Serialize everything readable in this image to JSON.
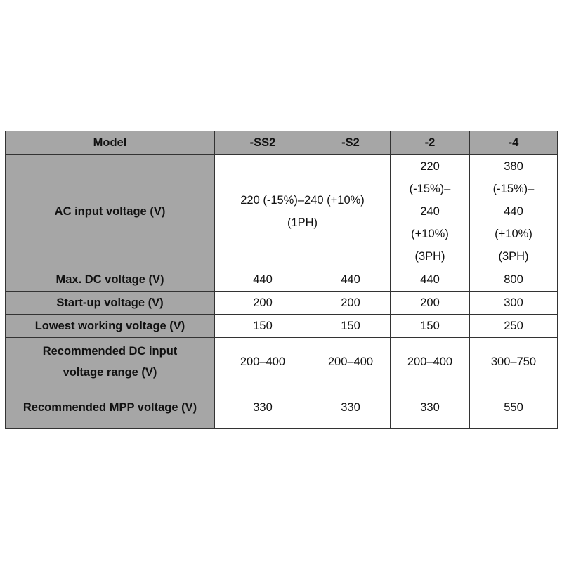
{
  "table": {
    "headers": [
      "Model",
      "-SS2",
      "-S2",
      "-2",
      "-4"
    ],
    "ac_input": {
      "label": "AC input voltage (V)",
      "single_phase": "220 (-15%)–240 (+10%) (1PH)",
      "model_2": [
        "220",
        "(-15%)–",
        "240",
        "(+10%)",
        "(3PH)"
      ],
      "model_4": [
        "380",
        "(-15%)–",
        "440",
        "(+10%)",
        "(3PH)"
      ]
    },
    "rows": [
      {
        "label": "Max. DC voltage (V)",
        "values": [
          "440",
          "440",
          "440",
          "800"
        ]
      },
      {
        "label": "Start-up voltage (V)",
        "values": [
          "200",
          "200",
          "200",
          "300"
        ]
      },
      {
        "label": "Lowest working voltage (V)",
        "values": [
          "150",
          "150",
          "150",
          "250"
        ]
      },
      {
        "label": "Recommended DC input voltage range (V)",
        "values": [
          "200–400",
          "200–400",
          "200–400",
          "300–750"
        ]
      },
      {
        "label": "Recommended MPP voltage (V)",
        "values": [
          "330",
          "330",
          "330",
          "550"
        ]
      }
    ]
  },
  "colors": {
    "header_bg": "#a6a6a6",
    "border": "#333333"
  }
}
